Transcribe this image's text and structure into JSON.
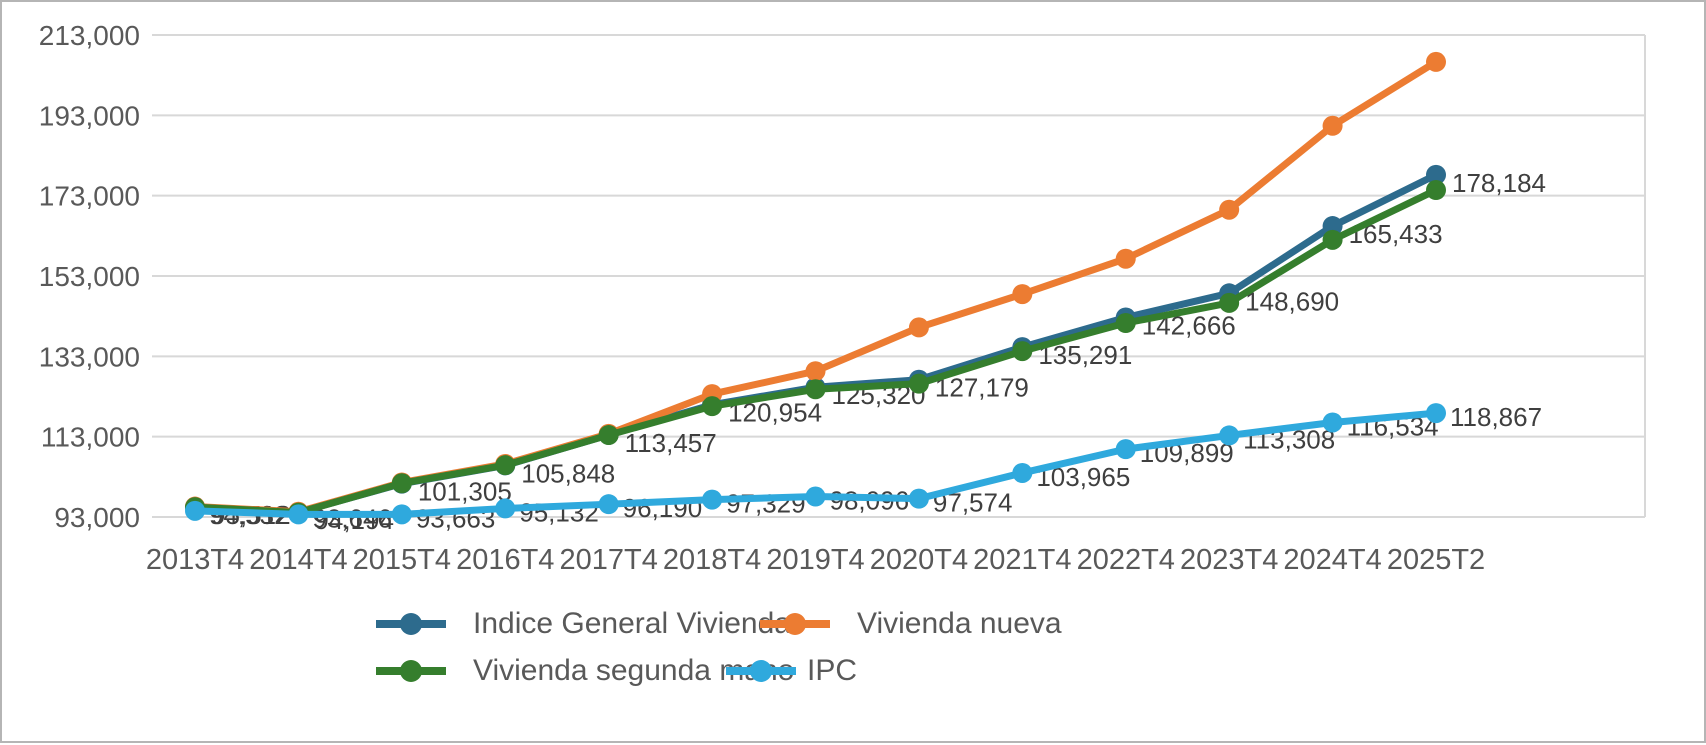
{
  "chart": {
    "background": "#ffffff",
    "frame_border_color": "#b5b5b5",
    "grid_color": "#d8d8d8",
    "axis_text_color": "#595959",
    "data_label_color": "#3f3f3f",
    "y_ticks": [
      "213,000",
      "193,000",
      "173,000",
      "153,000",
      "133,000",
      "113,000",
      "93,000"
    ]
  },
  "chart_data": {
    "type": "line",
    "title": "",
    "categories": [
      "2013T4",
      "2014T4",
      "2015T4",
      "2016T4",
      "2017T4",
      "2018T4",
      "2019T4",
      "2020T4",
      "2021T4",
      "2022T4",
      "2023T4",
      "2024T4",
      "2025T2"
    ],
    "ylim": [
      93000,
      213000
    ],
    "y_tick_step": 20000,
    "grid": true,
    "legend_position": "bottom",
    "series": [
      {
        "name": "Indice General Vivienda",
        "color": "#2d6b8d",
        "values": [
          95512,
          94194,
          101305,
          105848,
          113457,
          120954,
          125320,
          127179,
          135291,
          142666,
          148690,
          165433,
          178184
        ],
        "labels": [
          "95,512",
          "94,194",
          "101,305",
          "105,848",
          "113,457",
          "120,954",
          "125,320",
          "127,179",
          "135,291",
          "142,666",
          "148,690",
          "165,433",
          "178,184"
        ]
      },
      {
        "name": "Vivienda nueva",
        "color": "#ec7c32",
        "values": [
          95600,
          94300,
          101600,
          106200,
          113700,
          123600,
          129300,
          140200,
          148500,
          157300,
          169500,
          190400,
          206300
        ]
      },
      {
        "name": "Vivienda segunda mano",
        "color": "#357e2d",
        "values": [
          95450,
          94100,
          101400,
          105900,
          113400,
          120600,
          124800,
          126200,
          134300,
          141300,
          146300,
          162000,
          174400
        ]
      },
      {
        "name": "IPC",
        "color": "#2fa9dd",
        "values": [
          94532,
          93646,
          93663,
          95132,
          96190,
          97329,
          98096,
          97574,
          103965,
          109899,
          113308,
          116534,
          118867
        ],
        "labels": [
          "94,532",
          "93,646",
          "93,663",
          "95,132",
          "96,190",
          "97,329",
          "98,096",
          "97,574",
          "103,965",
          "109,899",
          "113,308",
          "116,534",
          "118,867"
        ]
      }
    ]
  }
}
